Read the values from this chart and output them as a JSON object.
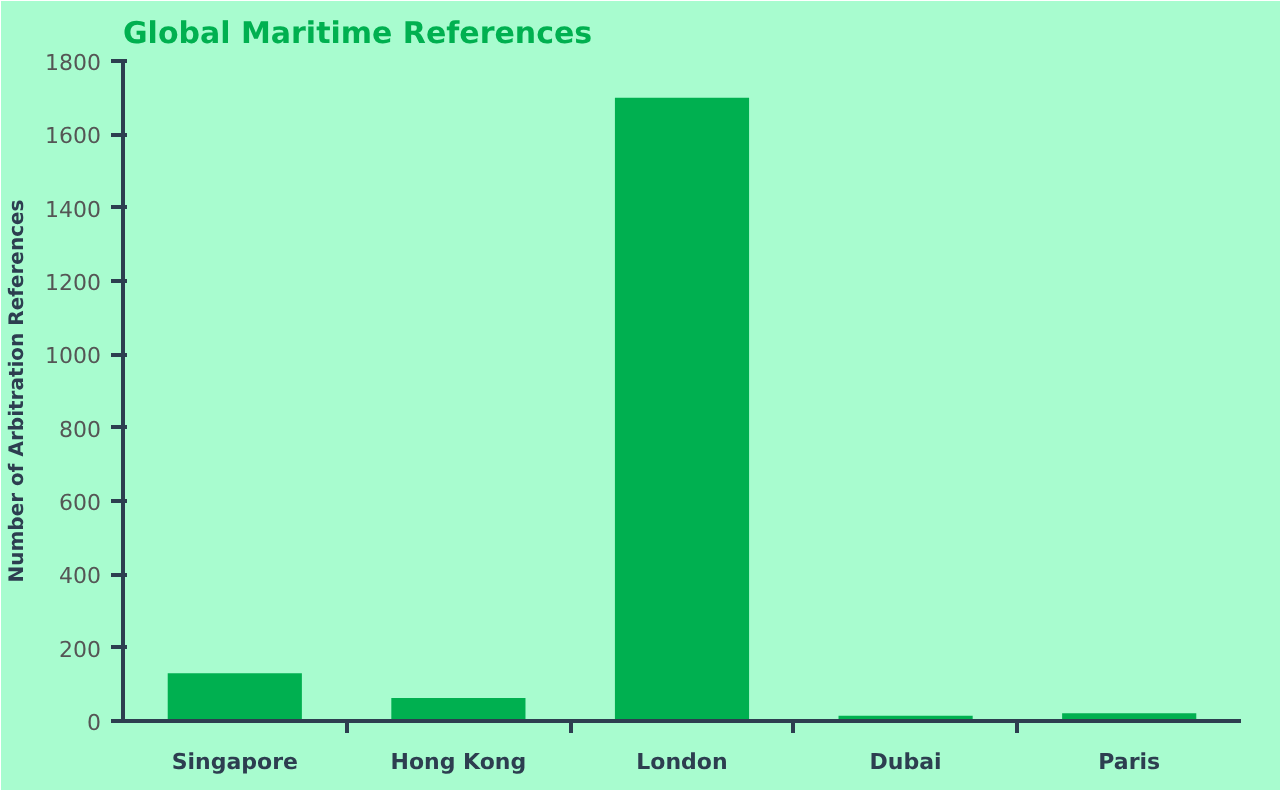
{
  "chart_data": {
    "type": "bar",
    "title": "Global Maritime References",
    "ylabel": "Number of Arbitration References",
    "categories": [
      "Singapore",
      "Hong Kong",
      "London",
      "Dubai",
      "Paris"
    ],
    "values": [
      130,
      63,
      1700,
      14,
      21
    ],
    "color": "#00b050",
    "ylim": [
      0,
      1800
    ],
    "yticks": [
      0,
      200,
      400,
      600,
      800,
      1000,
      1200,
      1400,
      1600,
      1800
    ],
    "grid": false
  }
}
